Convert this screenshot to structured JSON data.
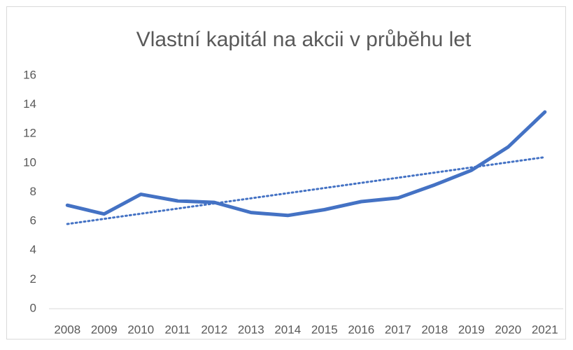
{
  "chart_data": {
    "type": "line",
    "title": "Vlastní kapitál na akcii v průběhu let",
    "categories": [
      "2008",
      "2009",
      "2010",
      "2011",
      "2012",
      "2013",
      "2014",
      "2015",
      "2016",
      "2017",
      "2018",
      "2019",
      "2020",
      "2021"
    ],
    "values": [
      7.1,
      6.5,
      7.85,
      7.4,
      7.3,
      6.6,
      6.4,
      6.8,
      7.35,
      7.6,
      8.5,
      9.5,
      11.1,
      13.5
    ],
    "color": "#4472c4",
    "trendline": {
      "type": "linear",
      "style": "dotted"
    },
    "ylim": [
      0,
      16
    ],
    "yticks": [
      0,
      2,
      4,
      6,
      8,
      10,
      12,
      14,
      16
    ],
    "grid": false
  }
}
